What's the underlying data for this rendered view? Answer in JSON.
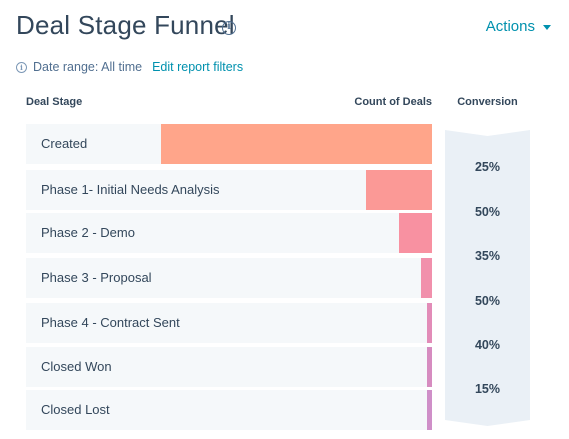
{
  "header": {
    "title": "Deal Stage Funnel",
    "title_info_icon": "info-icon",
    "actions_label": "Actions"
  },
  "filters": {
    "info_icon": "info-icon",
    "date_range": "Date range: All time",
    "edit_label": "Edit report filters"
  },
  "chart_data": {
    "type": "bar",
    "orientation": "horizontal-funnel",
    "columns": {
      "stage": "Deal Stage",
      "count": "Count of Deals",
      "conversion": "Conversion"
    },
    "categories": [
      "Created",
      "Phase 1- Initial Needs Analysis",
      "Phase 2 - Demo",
      "Phase 3 - Proposal",
      "Phase 4 - Contract Sent",
      "Closed Won",
      "Closed Lost"
    ],
    "values": [
      100,
      24.5,
      12,
      4,
      1.5,
      0.8,
      0.8
    ],
    "value_scale": "relative-to-max",
    "conversions": [
      "25%",
      "50%",
      "35%",
      "50%",
      "40%",
      "15%"
    ],
    "bar_colors": [
      "#ffa58a",
      "#fb9996",
      "#f891a1",
      "#f190ac",
      "#e28cb8",
      "#d68cc0",
      "#cf8fc8"
    ],
    "row_background": "#f5f8fa",
    "conversion_background": "#eaf0f6",
    "grid": false,
    "legend": "none"
  }
}
